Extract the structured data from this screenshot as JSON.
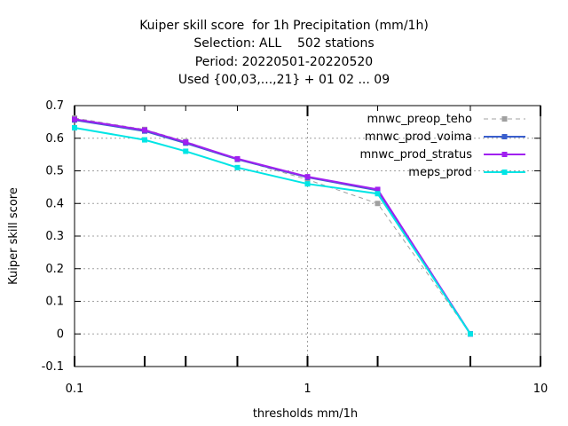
{
  "chart_data": {
    "type": "line",
    "title": [
      "Kuiper skill score  for 1h Precipitation (mm/1h)",
      "Selection: ALL    502 stations",
      "Period: 20220501-20220520",
      "Used {00,03,...,21} + 01 02 ... 09"
    ],
    "xlabel": "thresholds mm/1h",
    "ylabel": "Kuiper skill score",
    "x_scale": "log",
    "xlim": [
      0.1,
      10
    ],
    "ylim": [
      -0.1,
      0.7
    ],
    "x_ticks": [
      0.1,
      1,
      10
    ],
    "x_tick_labels": [
      "0.1",
      "1",
      "10"
    ],
    "x_minor_ticks": [
      0.2,
      0.3,
      0.5,
      2,
      5
    ],
    "y_ticks": [
      -0.1,
      0,
      0.1,
      0.2,
      0.3,
      0.4,
      0.5,
      0.6,
      0.7
    ],
    "y_tick_labels": [
      "-0.1",
      "0",
      "0.1",
      "0.2",
      "0.3",
      "0.4",
      "0.5",
      "0.6",
      "0.7"
    ],
    "grid": true,
    "legend_position": "top-right",
    "x": [
      0.1,
      0.2,
      0.3,
      0.5,
      1,
      2,
      5
    ],
    "series": [
      {
        "name": "mnwc_preop_teho",
        "color": "#a0a0a0",
        "dashed": true,
        "values": [
          0.662,
          0.627,
          0.59,
          0.536,
          0.473,
          0.4,
          0.0
        ]
      },
      {
        "name": "mnwc_prod_voima",
        "color": "#3a5fcd",
        "dashed": false,
        "values": [
          0.656,
          0.622,
          0.585,
          0.535,
          0.48,
          0.44,
          0.0
        ]
      },
      {
        "name": "mnwc_prod_stratus",
        "color": "#a020f0",
        "dashed": false,
        "values": [
          0.658,
          0.625,
          0.588,
          0.537,
          0.482,
          0.443,
          0.0
        ]
      },
      {
        "name": "meps_prod",
        "color": "#00e5e5",
        "dashed": false,
        "values": [
          0.632,
          0.595,
          0.56,
          0.51,
          0.46,
          0.43,
          0.0
        ]
      }
    ]
  }
}
